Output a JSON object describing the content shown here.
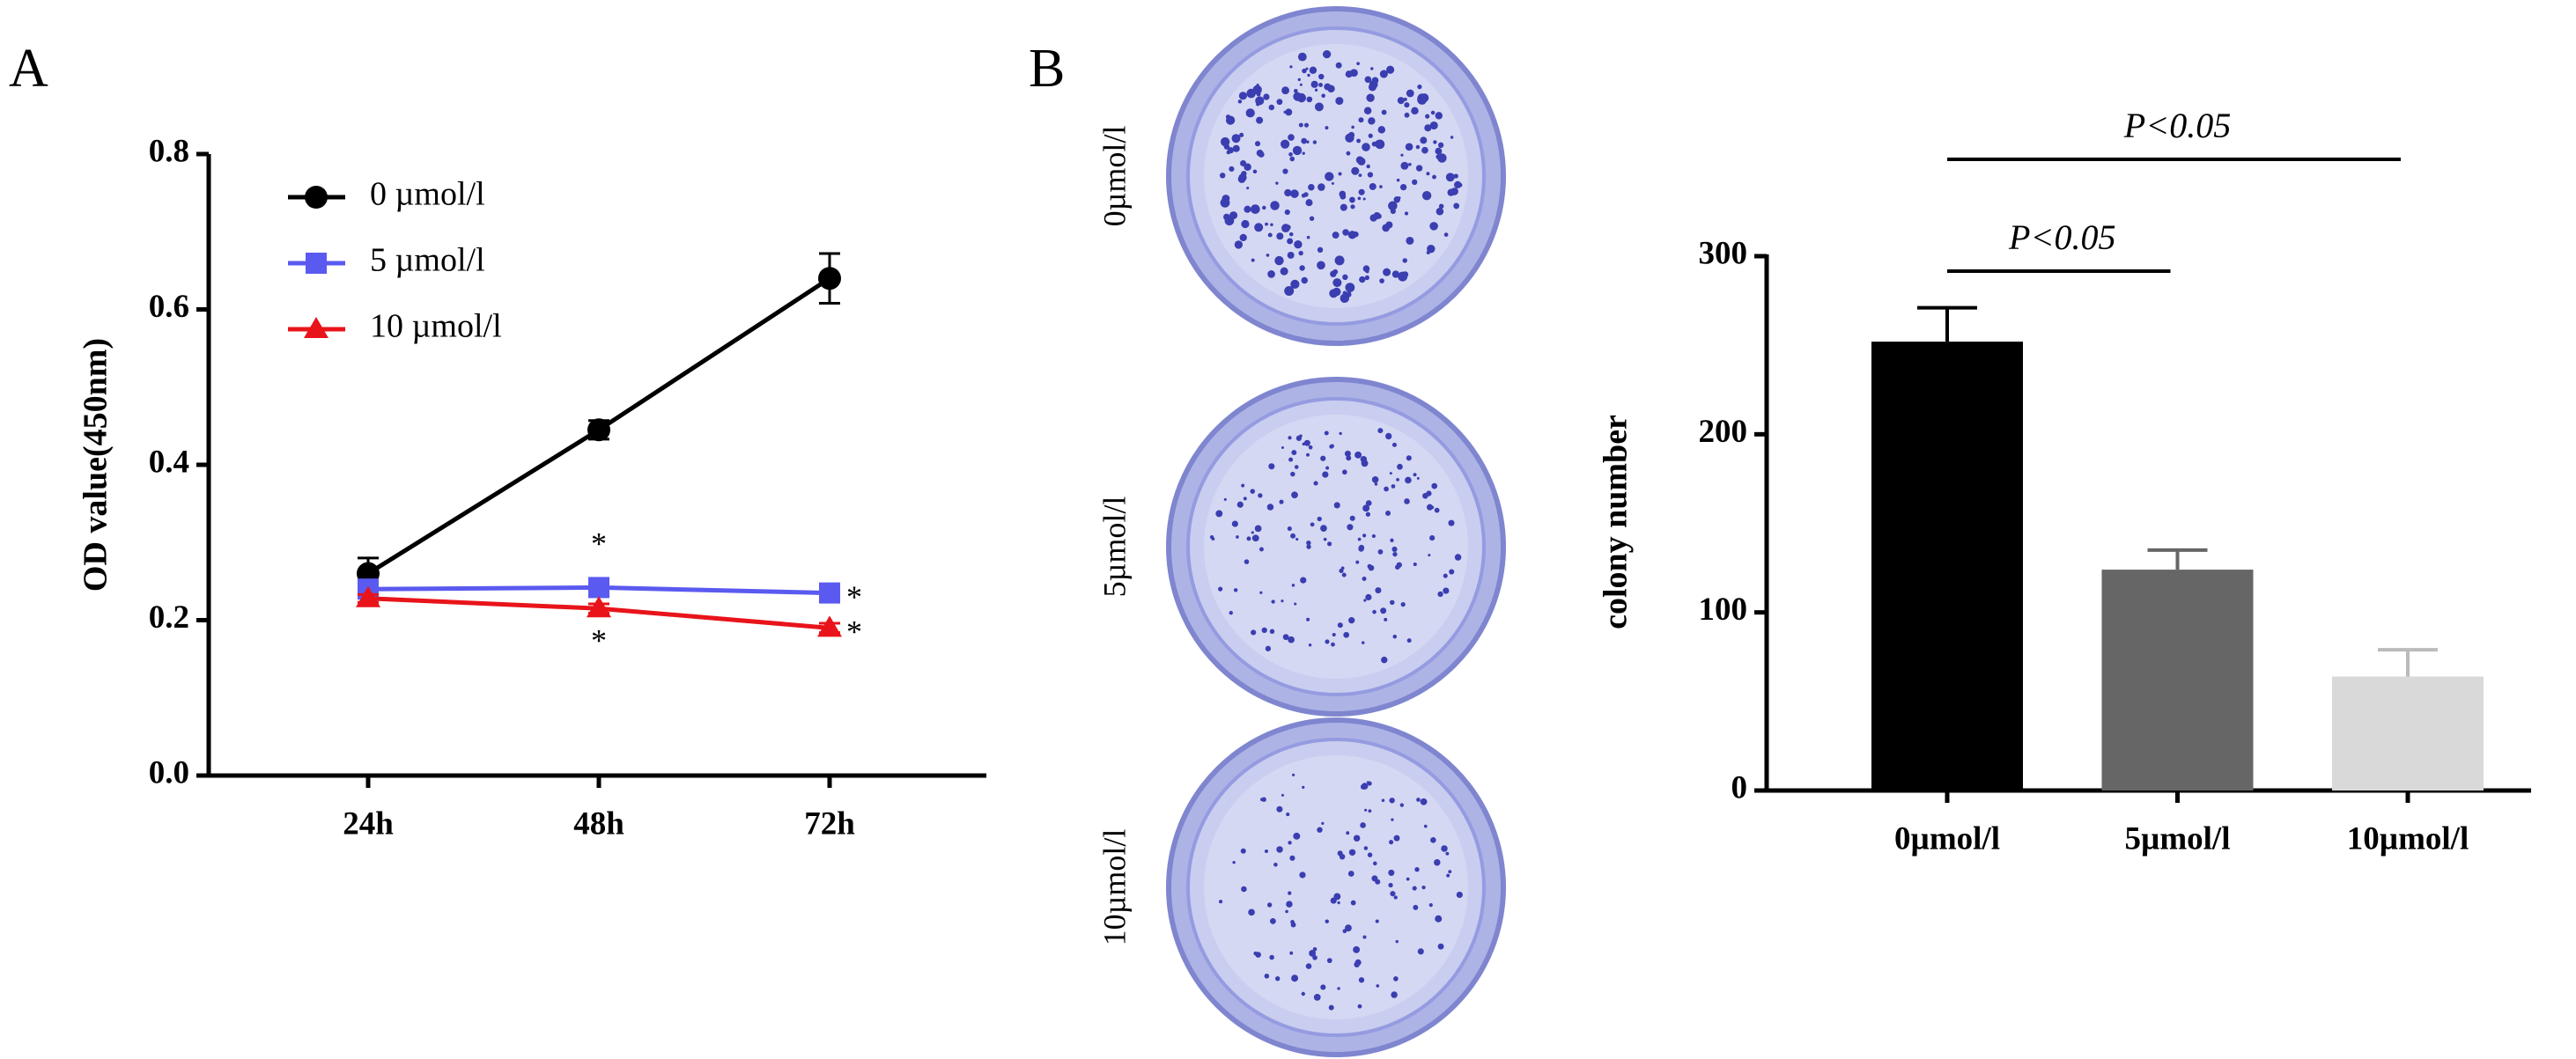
{
  "chart_data": [
    {
      "type": "line",
      "panel": "A",
      "ylabel": "OD value(450nm)",
      "categories": [
        "24h",
        "48h",
        "72h"
      ],
      "series": [
        {
          "name": "0 µmol/l",
          "color": "#000000",
          "marker": "circle",
          "values": [
            0.26,
            0.445,
            0.64
          ],
          "errors": [
            0.02,
            0.012,
            0.032
          ],
          "marks": [
            null,
            null,
            null
          ]
        },
        {
          "name": "5 µmol/l",
          "color": "#5a5af0",
          "marker": "square",
          "values": [
            0.24,
            0.242,
            0.235
          ],
          "errors": [
            0.005,
            0.005,
            0.005
          ],
          "marks": [
            null,
            "*",
            "*"
          ]
        },
        {
          "name": "10 µmol/l",
          "color": "#e8141a",
          "marker": "triangle",
          "values": [
            0.228,
            0.215,
            0.19
          ],
          "errors": [
            0.005,
            0.006,
            0.006
          ],
          "marks": [
            null,
            "*",
            "*"
          ]
        }
      ],
      "ylim": [
        0,
        0.8
      ],
      "yticks": [
        {
          "value": 0,
          "label": "0.0"
        },
        0.2,
        0.4,
        0.6,
        0.8
      ],
      "legend": "top-left"
    },
    {
      "type": "bar",
      "panel": "B",
      "ylabel": "colony number",
      "categories": [
        "0µmol/l",
        "5µmol/l",
        "10µmol/l"
      ],
      "values": [
        252,
        124,
        64
      ],
      "errors": [
        19,
        11,
        15
      ],
      "colors": [
        "#000000",
        "#666666",
        "#d9d9d9"
      ],
      "ylim": [
        0,
        300
      ],
      "yticks": [
        0,
        100,
        200,
        300
      ],
      "comparisons": [
        {
          "from": "0µmol/l",
          "to": "5µmol/l",
          "label": "P<0.05"
        },
        {
          "from": "0µmol/l",
          "to": "10µmol/l",
          "label": "P<0.05"
        }
      ]
    }
  ]
}
